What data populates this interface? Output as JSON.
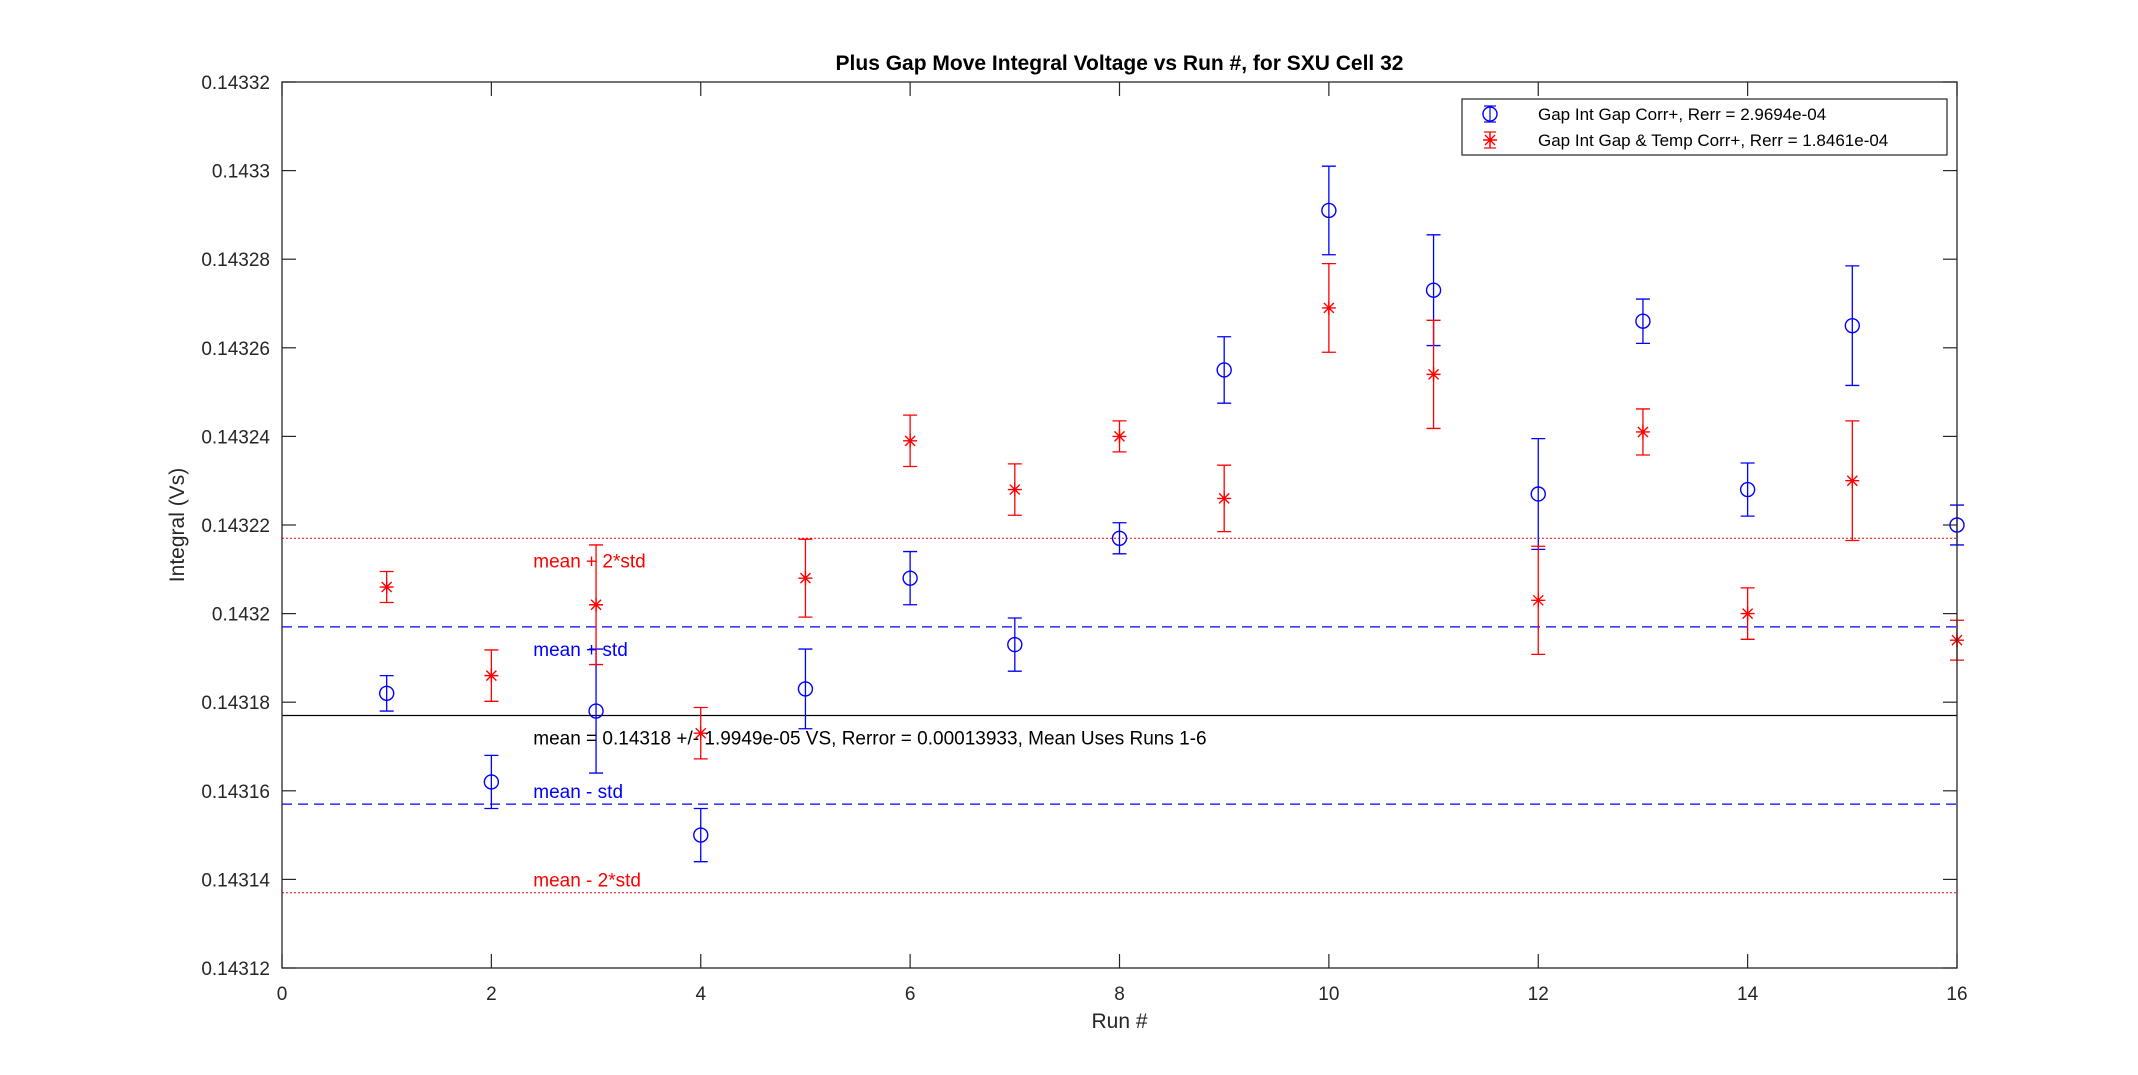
{
  "chart_data": {
    "type": "scatter",
    "title": "Plus Gap Move Integral Voltage vs Run #, for SXU Cell 32",
    "xlabel": "Run #",
    "ylabel": "Integral (Vs)",
    "xlim": [
      0,
      16
    ],
    "ylim": [
      0.14312,
      0.14332
    ],
    "xticks": [
      0,
      2,
      4,
      6,
      8,
      10,
      12,
      14,
      16
    ],
    "xtick_labels": [
      "0",
      "2",
      "4",
      "6",
      "8",
      "10",
      "12",
      "14",
      "16"
    ],
    "yticks": [
      0.14312,
      0.14314,
      0.14316,
      0.14318,
      0.1432,
      0.14322,
      0.14324,
      0.14326,
      0.14328,
      0.1433,
      0.14332
    ],
    "ytick_labels": [
      "0.14312",
      "0.14314",
      "0.14316",
      "0.14318",
      "0.1432",
      "0.14322",
      "0.14324",
      "0.14326",
      "0.14328",
      "0.1433",
      "0.14332"
    ],
    "grid": false,
    "legend_position": "top-right",
    "series": [
      {
        "name": "Gap Int Gap Corr+, Rerr = 2.9694e-04",
        "color": "#0000ff",
        "marker": "circle",
        "x": [
          1,
          2,
          3,
          4,
          5,
          6,
          7,
          8,
          9,
          10,
          11,
          12,
          13,
          14,
          15,
          16
        ],
        "y": [
          0.143182,
          0.143162,
          0.143178,
          0.14315,
          0.143183,
          0.143208,
          0.143193,
          0.143217,
          0.143255,
          0.143291,
          0.143273,
          0.143227,
          0.143266,
          0.143228,
          0.143265,
          0.14322
        ],
        "err": [
          4e-06,
          6e-06,
          1.4e-05,
          6e-06,
          9e-06,
          6e-06,
          6e-06,
          3.5e-06,
          7.5e-06,
          1e-05,
          1.25e-05,
          1.25e-05,
          5e-06,
          6e-06,
          1.35e-05,
          4.5e-06
        ]
      },
      {
        "name": "Gap Int Gap & Temp  Corr+, Rerr = 1.8461e-04",
        "color": "#ff0000",
        "marker": "asterisk",
        "x": [
          1,
          2,
          3,
          4,
          5,
          6,
          7,
          8,
          9,
          10,
          11,
          12,
          13,
          14,
          15,
          16
        ],
        "y": [
          0.143206,
          0.143186,
          0.143202,
          0.143173,
          0.143208,
          0.143239,
          0.143228,
          0.14324,
          0.143226,
          0.143269,
          0.143254,
          0.143203,
          0.143241,
          0.1432,
          0.14323,
          0.143194
        ],
        "err": [
          3.5e-06,
          5.8e-06,
          1.35e-05,
          5.8e-06,
          8.8e-06,
          5.8e-06,
          5.8e-06,
          3.5e-06,
          7.5e-06,
          1e-05,
          1.22e-05,
          1.22e-05,
          5.2e-06,
          5.8e-06,
          1.35e-05,
          4.5e-06
        ]
      }
    ],
    "reference_lines": [
      {
        "y": 0.143177,
        "style": "solid",
        "color": "#000000"
      },
      {
        "y": 0.143197,
        "style": "dashed",
        "color": "#0000ff"
      },
      {
        "y": 0.143157,
        "style": "dashed",
        "color": "#0000ff"
      },
      {
        "y": 0.143217,
        "style": "dotted",
        "color": "#ff0000"
      },
      {
        "y": 0.143137,
        "style": "dotted",
        "color": "#ff0000"
      }
    ],
    "annotations": [
      {
        "text": "mean + 2*std",
        "x": 2.4,
        "y": 0.143212,
        "color": "#ff0000"
      },
      {
        "text": "mean + std",
        "x": 2.4,
        "y": 0.143192,
        "color": "#0000ff"
      },
      {
        "text": "mean = 0.14318 +/- 1.9949e-05 VS, Rerror = 0.00013933, Mean Uses Runs 1-6",
        "x": 2.4,
        "y": 0.143172,
        "color": "#000000"
      },
      {
        "text": "mean - std",
        "x": 2.4,
        "y": 0.14316,
        "color": "#0000ff"
      },
      {
        "text": "mean - 2*std",
        "x": 2.4,
        "y": 0.14314,
        "color": "#ff0000"
      }
    ]
  }
}
